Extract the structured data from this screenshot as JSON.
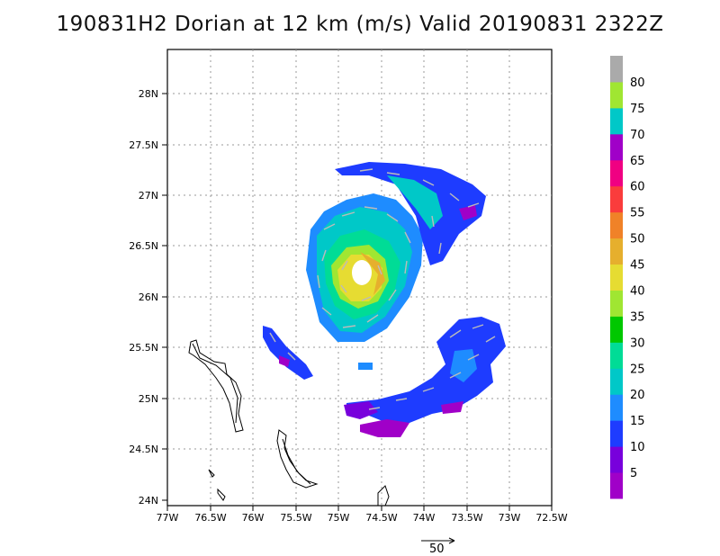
{
  "title": "190831H2 Dorian at 12 km (m/s) Valid 20190831  2322Z",
  "lat_labels": [
    "28N",
    "27.5N",
    "27N",
    "26.5N",
    "26N",
    "25.5N",
    "25N",
    "24.5N",
    "24N"
  ],
  "lon_labels": [
    "77W",
    "76.5W",
    "76W",
    "75.5W",
    "75W",
    "74.5W",
    "74W",
    "73.5W",
    "73W",
    "72.5W"
  ],
  "colorbar": {
    "colors": [
      "#a000c8",
      "#7800dc",
      "#1e3cff",
      "#1e8cff",
      "#00c8c8",
      "#00dc96",
      "#00c800",
      "#a0e632",
      "#e6dc32",
      "#e6af2d",
      "#f08228",
      "#fa3c3c",
      "#f00082",
      "#a000c8",
      "#00c8c8",
      "#a0e632",
      "#aaaaaa"
    ],
    "labels": [
      "5",
      "10",
      "15",
      "20",
      "25",
      "30",
      "35",
      "40",
      "45",
      "50",
      "55",
      "60",
      "65",
      "70",
      "75",
      "80"
    ]
  },
  "scale_vector": {
    "label": "50"
  },
  "storm_center": {
    "lat": 26.2,
    "lon": -74.8
  },
  "axis_ranges": {
    "lat": [
      23.95,
      28.45
    ],
    "lon": [
      -77,
      -72.5
    ]
  },
  "grid": true
}
